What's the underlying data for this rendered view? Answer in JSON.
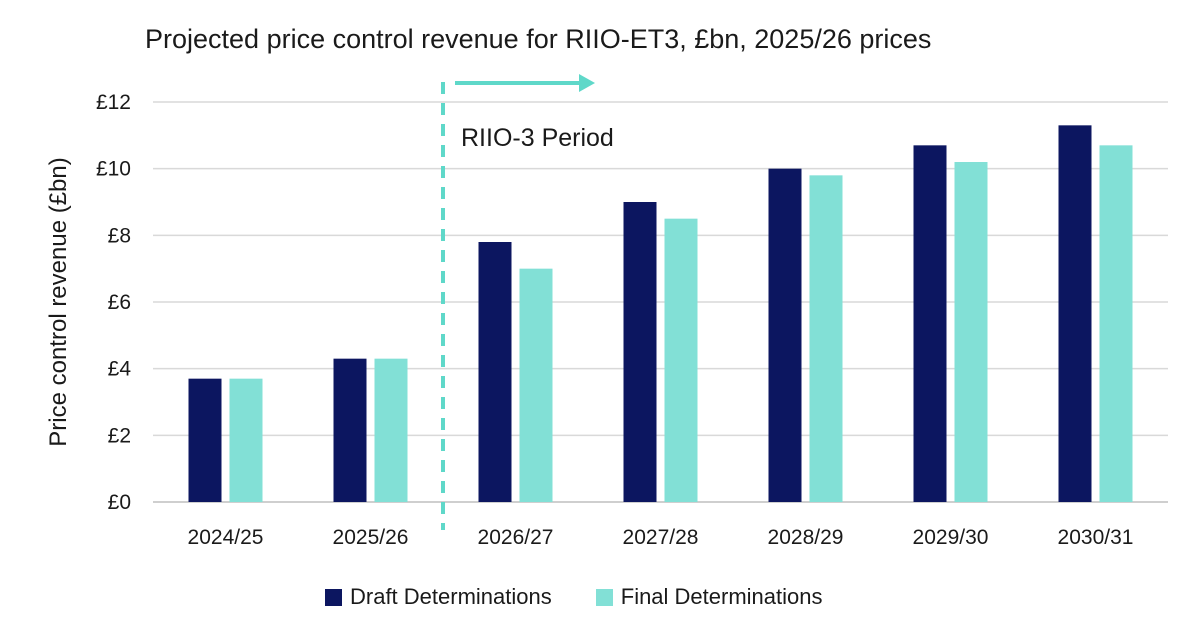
{
  "chart_data": {
    "type": "bar",
    "title": "Projected price control revenue for RIIO-ET3, £bn, 2025/26 prices",
    "xlabel": "",
    "ylabel": "Price control revenue (£bn)",
    "categories": [
      "2024/25",
      "2025/26",
      "2026/27",
      "2027/28",
      "2028/29",
      "2029/30",
      "2030/31"
    ],
    "series": [
      {
        "name": "Draft Determinations",
        "color": "#0c1660",
        "values": [
          3.7,
          4.3,
          7.8,
          9.0,
          10.0,
          10.7,
          11.3
        ]
      },
      {
        "name": "Final Determinations",
        "color": "#82e0d6",
        "values": [
          3.7,
          4.3,
          7.0,
          8.5,
          9.8,
          10.2,
          10.7
        ]
      }
    ],
    "ylim": [
      0,
      12
    ],
    "yticks": [
      0,
      2,
      4,
      6,
      8,
      10,
      12
    ],
    "ytick_labels": [
      "£0",
      "£2",
      "£4",
      "£6",
      "£8",
      "£10",
      "£12"
    ],
    "grid": true,
    "legend_position": "bottom",
    "annotations": [
      {
        "text": "RIIO-3 Period",
        "boundary_between": [
          "2025/26",
          "2026/27"
        ],
        "color": "#5fd8c9",
        "style": "dashed line with right arrow"
      }
    ]
  }
}
